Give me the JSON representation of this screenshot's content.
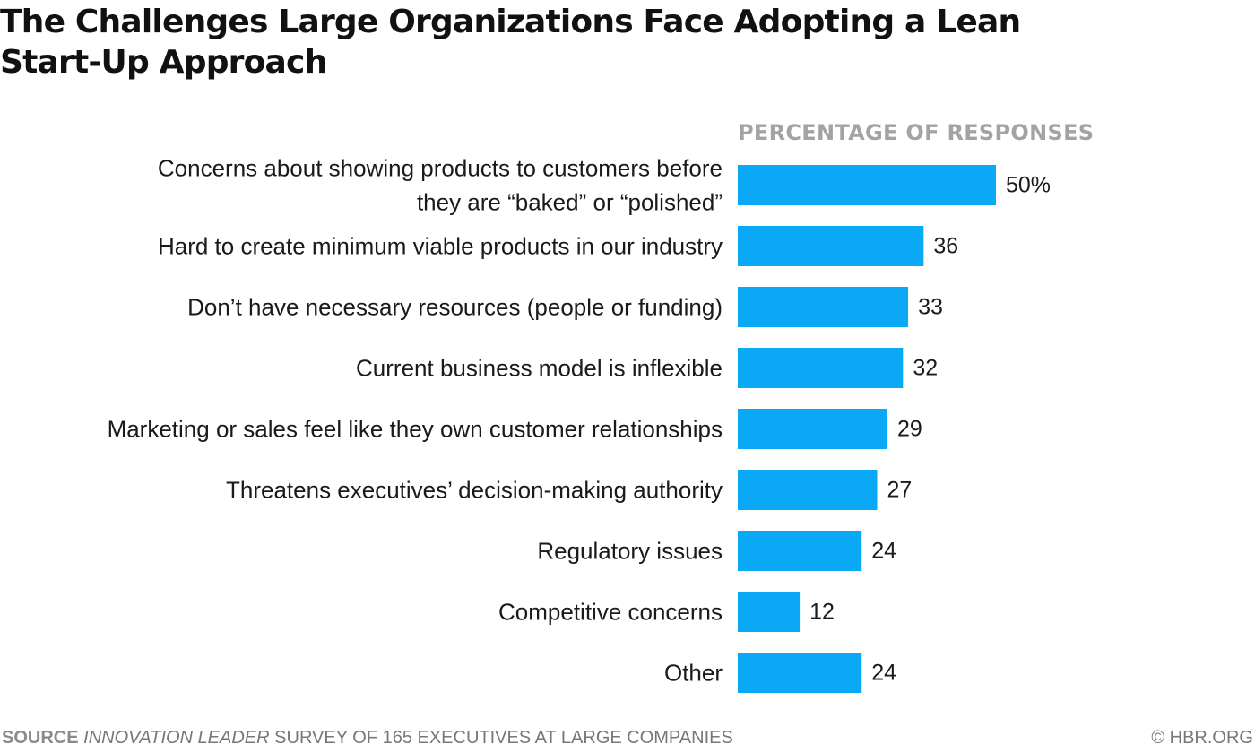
{
  "chart_data": {
    "type": "bar",
    "orientation": "horizontal",
    "title": "The Challenges Large Organizations Face Adopting a Lean Start-Up Approach",
    "axis_title": "PERCENTAGE OF RESPONSES",
    "categories": [
      [
        "Concerns about showing products to customers before",
        "they are “baked” or “polished”"
      ],
      [
        "Hard to create minimum viable products in our industry"
      ],
      [
        "Don’t have necessary resources (people or funding)"
      ],
      [
        "Current business model is inflexible"
      ],
      [
        "Marketing or sales feel like they own customer relationships"
      ],
      [
        "Threatens executives’ decision-making authority"
      ],
      [
        "Regulatory issues"
      ],
      [
        "Competitive concerns"
      ],
      [
        "Other"
      ]
    ],
    "values": [
      50,
      36,
      33,
      32,
      29,
      27,
      24,
      12,
      24
    ],
    "value_labels": [
      "50%",
      "36",
      "33",
      "32",
      "29",
      "27",
      "24",
      "12",
      "24"
    ],
    "xlim": [
      0,
      50
    ],
    "bar_color": "#0ba8f5",
    "grid": false,
    "legend": "none"
  },
  "source": {
    "label": "SOURCE",
    "publication": "INNOVATION LEADER",
    "text": "SURVEY OF 165 EXECUTIVES AT LARGE COMPANIES"
  },
  "credit": "© HBR.ORG"
}
